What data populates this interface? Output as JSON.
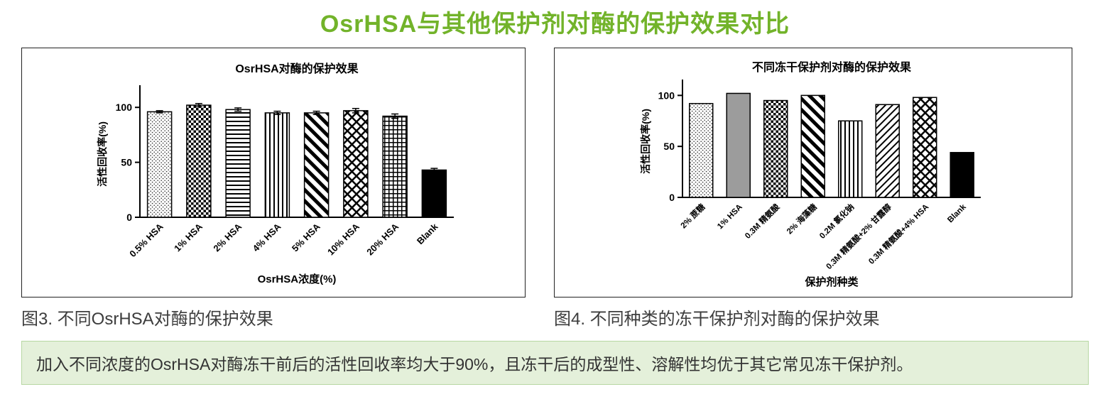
{
  "page": {
    "title": "OsrHSA与其他保护剂对酶的保护效果对比"
  },
  "colors": {
    "accent": "#72b32a",
    "note_bg": "#e4f0da",
    "note_border": "#b7d7a2"
  },
  "captions": {
    "left": "图3. 不同OsrHSA对酶的保护效果",
    "right": "图4. 不同种类的冻干保护剂对酶的保护效果"
  },
  "note": {
    "text": "加入不同浓度的OsrHSA对酶冻干前后的活性回收率均大于90%，且冻干后的成型性、溶解性均优于其它常见冻干保护剂。"
  },
  "chart_data": [
    {
      "type": "bar",
      "title": "OsrHSA对酶的保护效果",
      "categories": [
        "0.5% HSA",
        "1% HSA",
        "2% HSA",
        "4% HSA",
        "5% HSA",
        "10% HSA",
        "20% HSA",
        "Blank"
      ],
      "values": [
        96,
        102,
        98,
        95,
        95,
        97,
        92,
        43
      ],
      "errors": [
        1,
        1.5,
        1.5,
        1.5,
        1.5,
        2,
        2,
        1.5
      ],
      "patterns": [
        "dots",
        "checker",
        "hlines",
        "vlines",
        "diag",
        "diamond",
        "grid",
        "solid"
      ],
      "xlabel": "OsrHSA浓度(%)",
      "ylabel": "活性回收率(%)",
      "yticks": [
        0,
        50,
        100
      ],
      "ylim": [
        0,
        115
      ],
      "grid": false,
      "legend": "none"
    },
    {
      "type": "bar",
      "title": "不同冻干保护剂对酶的保护效果",
      "categories": [
        "2% 蔗糖",
        "1% HSA",
        "0.3M 精氨酸",
        "2% 海藻糖",
        "0.2M 氯化钠",
        "0.3M 精氨酸+2% 甘露醇",
        "0.3M 精氨酸+4% HSA",
        "Blank"
      ],
      "values": [
        92,
        102,
        95,
        100,
        75,
        91,
        98,
        44
      ],
      "errors": null,
      "patterns": [
        "dots",
        "gray",
        "checker",
        "diag",
        "vlines",
        "finediag",
        "diamond",
        "solid"
      ],
      "xlabel": "保护剂种类",
      "ylabel": "活性回收率(%)",
      "yticks": [
        0,
        50,
        100
      ],
      "ylim": [
        0,
        110
      ],
      "grid": false,
      "legend": "none"
    }
  ]
}
